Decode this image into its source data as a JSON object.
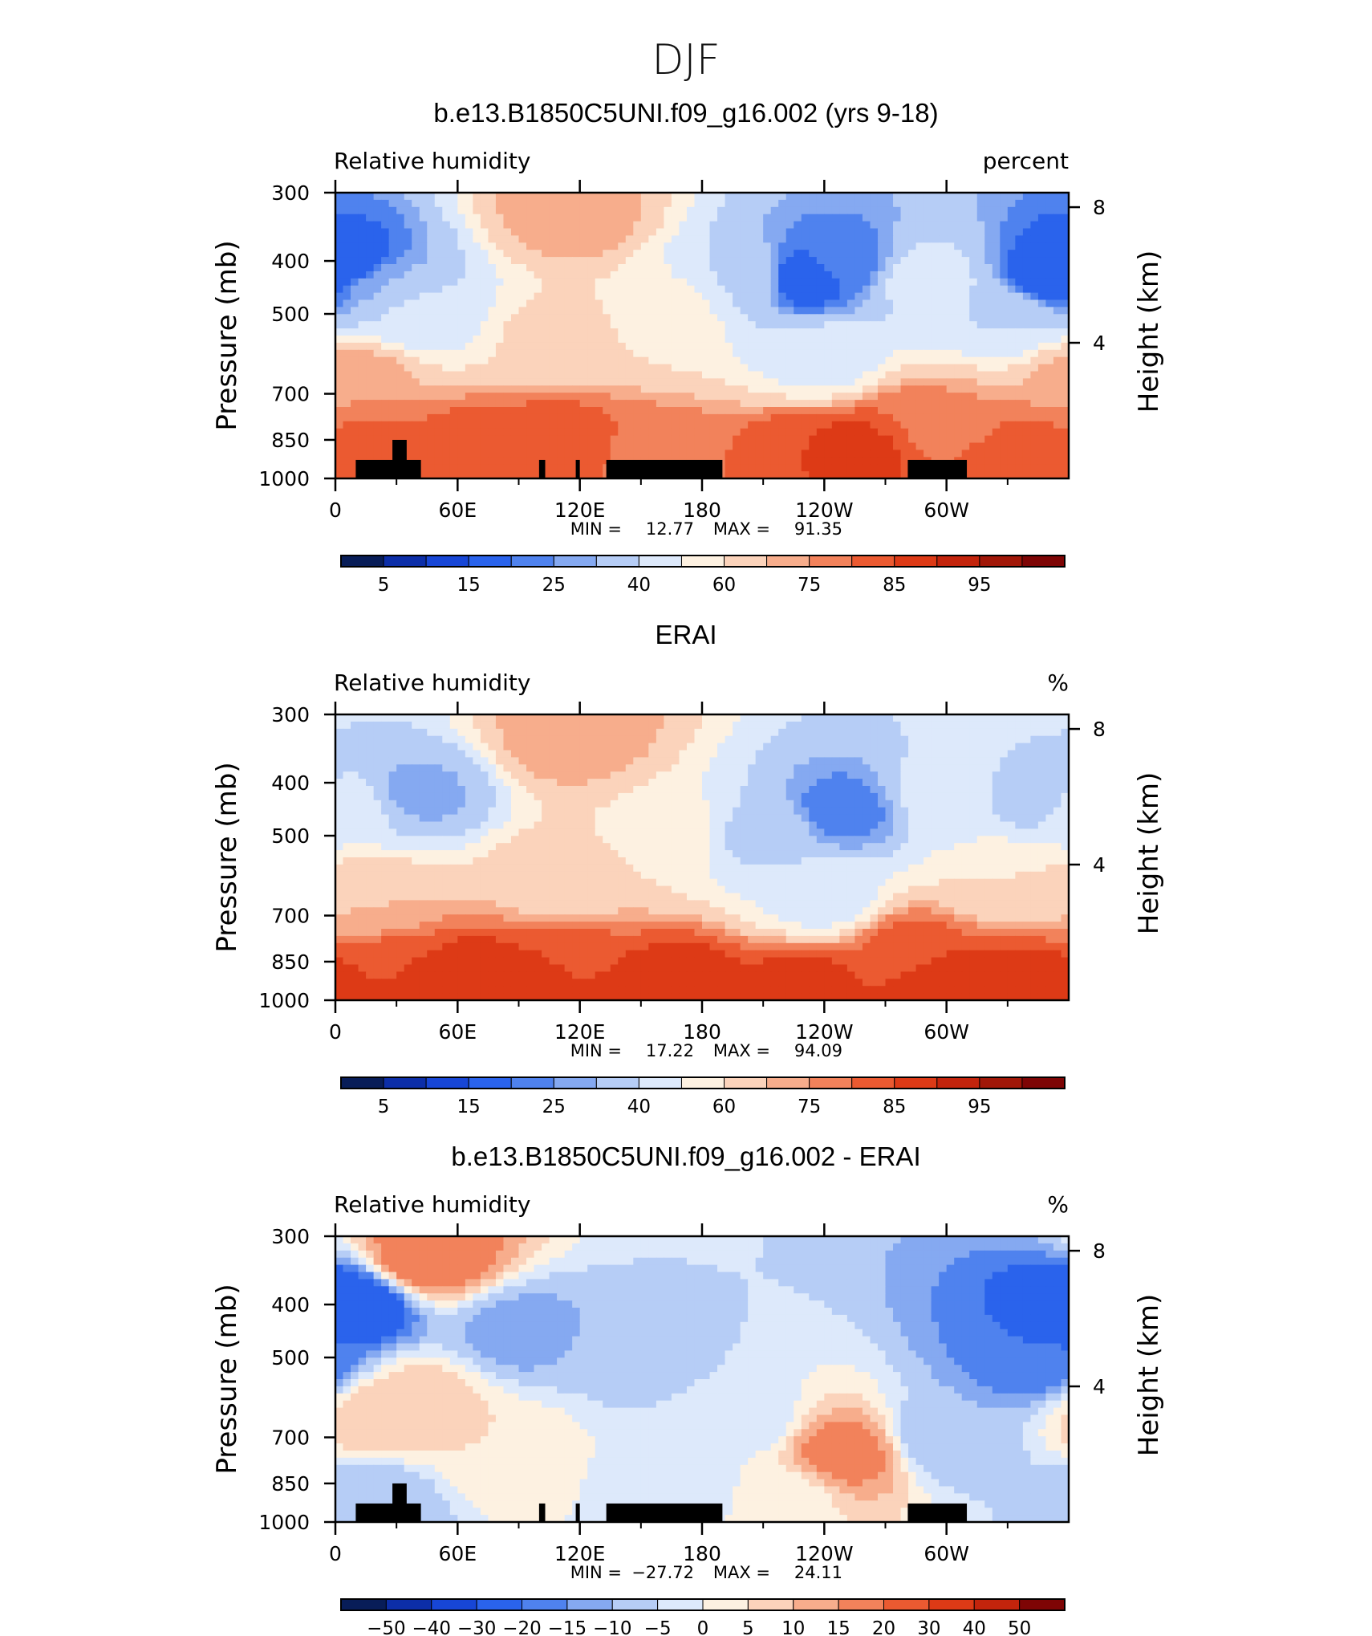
{
  "figure": {
    "season_title": "DJF"
  },
  "chart_data": [
    {
      "type": "heatmap",
      "title": "b.e13.B1850C5UNI.f09_g16.002 (yrs 9-18)",
      "left_label": "Relative humidity",
      "right_label": "percent",
      "ylabel": "Pressure (mb)",
      "y2label": "Height (km)",
      "xticks": [
        "0",
        "60E",
        "120E",
        "180",
        "120W",
        "60W"
      ],
      "yticks": [
        "300",
        "400",
        "500",
        "700",
        "850",
        "1000"
      ],
      "y2ticks": [
        "8",
        "4"
      ],
      "ylim": [
        1000,
        300
      ],
      "xlim": [
        0,
        360
      ],
      "stats": {
        "min_label": "MIN =",
        "min": "12.77",
        "max_label": "MAX =",
        "max": "91.35"
      },
      "colorbar": {
        "labels": [
          "5",
          "15",
          "25",
          "40",
          "60",
          "75",
          "85",
          "95"
        ],
        "colors": [
          "#081d58",
          "#0c2ea8",
          "#1746d6",
          "#2a63ec",
          "#4f82ee",
          "#85a9f1",
          "#b6cdf6",
          "#dde9fb",
          "#fdf1e1",
          "#fbd3bb",
          "#f7ad8c",
          "#f2825b",
          "#eb5a31",
          "#dd3a16",
          "#c3240c",
          "#a11708",
          "#7e0505"
        ]
      },
      "fields": [
        {
          "lon": 5,
          "p": 400,
          "v": 15
        },
        {
          "lon": 25,
          "p": 450,
          "v": 30
        },
        {
          "lon": 10,
          "p": 650,
          "v": 75
        },
        {
          "lon": 40,
          "p": 500,
          "v": 45
        },
        {
          "lon": 115,
          "p": 330,
          "v": 75
        },
        {
          "lon": 110,
          "p": 550,
          "v": 63
        },
        {
          "lon": 160,
          "p": 500,
          "v": 58
        },
        {
          "lon": 230,
          "p": 430,
          "v": 15
        },
        {
          "lon": 250,
          "p": 400,
          "v": 22
        },
        {
          "lon": 200,
          "p": 430,
          "v": 40
        },
        {
          "lon": 240,
          "p": 600,
          "v": 45
        },
        {
          "lon": 290,
          "p": 430,
          "v": 45
        },
        {
          "lon": 350,
          "p": 430,
          "v": 15
        },
        {
          "lon": 330,
          "p": 500,
          "v": 40
        },
        {
          "lon": 285,
          "p": 800,
          "v": 80
        },
        {
          "lon": 300,
          "p": 800,
          "v": 75
        },
        {
          "lon": 20,
          "p": 900,
          "v": 82
        },
        {
          "lon": 70,
          "p": 900,
          "v": 85
        },
        {
          "lon": 110,
          "p": 850,
          "v": 83
        },
        {
          "lon": 160,
          "p": 900,
          "v": 78
        },
        {
          "lon": 230,
          "p": 900,
          "v": 85
        },
        {
          "lon": 260,
          "p": 880,
          "v": 88
        },
        {
          "lon": 330,
          "p": 920,
          "v": 85
        }
      ],
      "land": [
        [
          10,
          42,
          925
        ],
        [
          28,
          35,
          850
        ],
        [
          100,
          103,
          925
        ],
        [
          118,
          120,
          925
        ],
        [
          133,
          190,
          925
        ],
        [
          281,
          310,
          925
        ]
      ]
    },
    {
      "type": "heatmap",
      "title": "ERAI",
      "left_label": "Relative humidity",
      "right_label": "%",
      "ylabel": "Pressure (mb)",
      "y2label": "Height (km)",
      "xticks": [
        "0",
        "60E",
        "120E",
        "180",
        "120W",
        "60W"
      ],
      "yticks": [
        "300",
        "400",
        "500",
        "700",
        "850",
        "1000"
      ],
      "y2ticks": [
        "8",
        "4"
      ],
      "ylim": [
        1000,
        300
      ],
      "xlim": [
        0,
        360
      ],
      "stats": {
        "min_label": "MIN =",
        "min": "17.22",
        "max_label": "MAX =",
        "max": "94.09"
      },
      "colorbar": {
        "labels": [
          "5",
          "15",
          "25",
          "40",
          "60",
          "75",
          "85",
          "95"
        ],
        "colors": [
          "#081d58",
          "#0c2ea8",
          "#1746d6",
          "#2a63ec",
          "#4f82ee",
          "#85a9f1",
          "#b6cdf6",
          "#dde9fb",
          "#fdf1e1",
          "#fbd3bb",
          "#f7ad8c",
          "#f2825b",
          "#eb5a31",
          "#dd3a16",
          "#c3240c",
          "#a11708",
          "#7e0505"
        ]
      },
      "fields": [
        {
          "lon": 5,
          "p": 450,
          "v": 48
        },
        {
          "lon": 40,
          "p": 420,
          "v": 28
        },
        {
          "lon": 15,
          "p": 650,
          "v": 70
        },
        {
          "lon": 115,
          "p": 330,
          "v": 75
        },
        {
          "lon": 110,
          "p": 600,
          "v": 66
        },
        {
          "lon": 160,
          "p": 500,
          "v": 58
        },
        {
          "lon": 250,
          "p": 450,
          "v": 22
        },
        {
          "lon": 210,
          "p": 500,
          "v": 38
        },
        {
          "lon": 240,
          "p": 650,
          "v": 45
        },
        {
          "lon": 300,
          "p": 430,
          "v": 45
        },
        {
          "lon": 345,
          "p": 430,
          "v": 35
        },
        {
          "lon": 330,
          "p": 600,
          "v": 60
        },
        {
          "lon": 280,
          "p": 800,
          "v": 82
        },
        {
          "lon": 20,
          "p": 900,
          "v": 85
        },
        {
          "lon": 70,
          "p": 930,
          "v": 90
        },
        {
          "lon": 110,
          "p": 870,
          "v": 85
        },
        {
          "lon": 170,
          "p": 930,
          "v": 88
        },
        {
          "lon": 230,
          "p": 930,
          "v": 87
        },
        {
          "lon": 300,
          "p": 930,
          "v": 90
        },
        {
          "lon": 340,
          "p": 930,
          "v": 88
        }
      ],
      "land": []
    },
    {
      "type": "heatmap",
      "title": "b.e13.B1850C5UNI.f09_g16.002 - ERAI",
      "left_label": "Relative humidity",
      "right_label": "%",
      "ylabel": "Pressure (mb)",
      "y2label": "Height (km)",
      "xticks": [
        "0",
        "60E",
        "120E",
        "180",
        "120W",
        "60W"
      ],
      "yticks": [
        "300",
        "400",
        "500",
        "700",
        "850",
        "1000"
      ],
      "y2ticks": [
        "8",
        "4"
      ],
      "ylim": [
        1000,
        300
      ],
      "xlim": [
        0,
        360
      ],
      "stats": {
        "min_label": "MIN =",
        "min": "−27.72",
        "max_label": "MAX =",
        "max": "24.11"
      },
      "colorbar": {
        "labels": [
          "−50",
          "−40",
          "−30",
          "−20",
          "−15",
          "−10",
          "−5",
          "0",
          "5",
          "10",
          "15",
          "20",
          "30",
          "40",
          "50"
        ],
        "colors": [
          "#081d58",
          "#0c2ea8",
          "#1746d6",
          "#2a63ec",
          "#4f82ee",
          "#85a9f1",
          "#b6cdf6",
          "#dde9fb",
          "#fdf1e1",
          "#fbd3bb",
          "#f7ad8c",
          "#f2825b",
          "#eb5a31",
          "#dd3a16",
          "#c3240c",
          "#7e0505"
        ]
      },
      "fields": [
        {
          "lon": 8,
          "p": 400,
          "v": -28
        },
        {
          "lon": 45,
          "p": 330,
          "v": 20
        },
        {
          "lon": 40,
          "p": 600,
          "v": 8
        },
        {
          "lon": 25,
          "p": 650,
          "v": 10
        },
        {
          "lon": 90,
          "p": 450,
          "v": -12
        },
        {
          "lon": 150,
          "p": 500,
          "v": -7
        },
        {
          "lon": 200,
          "p": 650,
          "v": -3
        },
        {
          "lon": 250,
          "p": 750,
          "v": 18
        },
        {
          "lon": 300,
          "p": 700,
          "v": -10
        },
        {
          "lon": 345,
          "p": 500,
          "v": -20
        },
        {
          "lon": 80,
          "p": 750,
          "v": 5
        },
        {
          "lon": 170,
          "p": 850,
          "v": -5
        },
        {
          "lon": 220,
          "p": 900,
          "v": 3
        },
        {
          "lon": 20,
          "p": 900,
          "v": -10
        }
      ],
      "land": [
        [
          10,
          42,
          925
        ],
        [
          28,
          35,
          850
        ],
        [
          100,
          103,
          925
        ],
        [
          118,
          120,
          925
        ],
        [
          133,
          190,
          925
        ],
        [
          281,
          310,
          925
        ]
      ]
    }
  ]
}
